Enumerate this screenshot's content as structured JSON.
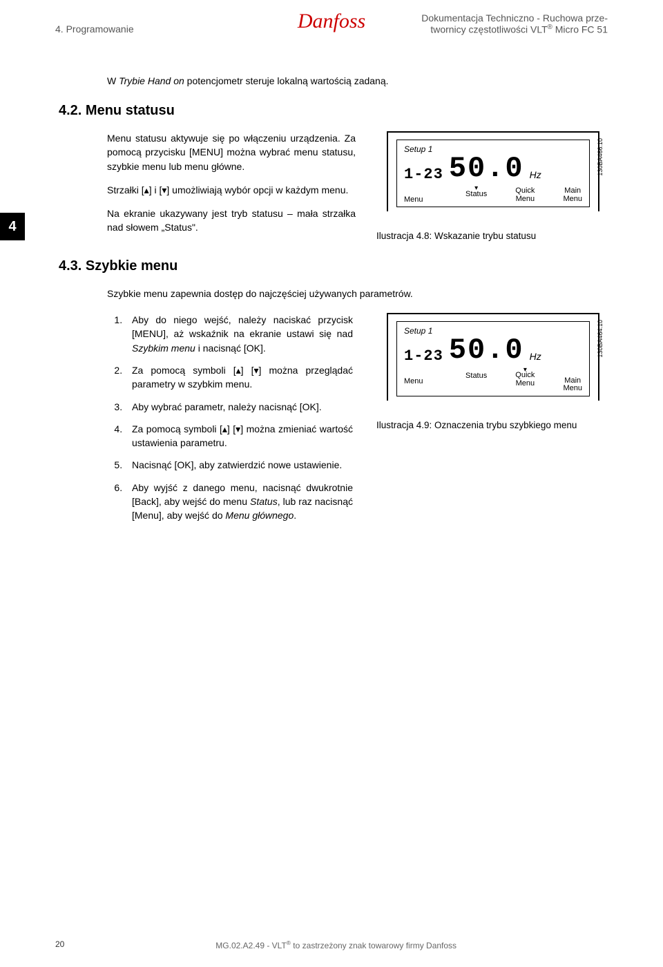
{
  "header": {
    "left": "4. Programowanie",
    "logo": "Danfoss",
    "right_line1": "Dokumentacja Techniczno - Ruchowa prze-",
    "right_line2": "twornicy częstotliwości VLT® Micro FC 51"
  },
  "section_tab": "4",
  "intro": {
    "pre": "W ",
    "italic": "Trybie Hand on",
    "post": " potencjometr steruje lokalną wartością zadaną."
  },
  "h42": "4.2. Menu statusu",
  "s42": {
    "p1": "Menu statusu aktywuje się po włączeniu urządzenia. Za pomocą przycisku [MENU] można wybrać menu statusu, szybkie menu lub menu główne.",
    "p2": "Strzałki [▴] i [▾] umożliwiają wybór opcji w każdym menu.",
    "p3": "Na ekranie ukazywany jest tryb statusu – mała strzałka nad słowem „Status\"."
  },
  "lcd": {
    "setup": "Setup 1",
    "small_digits": "1-23",
    "big_digits": "50.0",
    "hz": "Hz",
    "menu": "Menu",
    "status": "Status",
    "quick_l1": "Quick",
    "quick_l2": "Menu",
    "main_l1": "Main",
    "main_l2": "Menu",
    "side1": "130BA466.10",
    "side2": "130BA464.10"
  },
  "fig48": "Ilustracja 4.8: Wskazanie trybu statusu",
  "h43": "4.3. Szybkie menu",
  "s43_intro": "Szybkie menu zapewnia dostęp do najczęściej używanych parametrów.",
  "steps": {
    "s1a": "Aby do niego wejść, należy naciskać przycisk [MENU], aż wskaźnik na ekranie ustawi się nad ",
    "s1b": "Szybkim menu",
    "s1c": " i nacisnąć [OK].",
    "s2": "Za pomocą symboli [▴] [▾] można przeglądać parametry w szybkim menu.",
    "s3": "Aby wybrać parametr, należy nacisnąć [OK].",
    "s4": "Za pomocą symboli [▴] [▾] można zmieniać wartość ustawienia parametru.",
    "s5": "Nacisnąć [OK], aby zatwierdzić nowe ustawienie.",
    "s6a": "Aby wyjść z danego menu, nacisnąć dwukrotnie [Back], aby wejść do menu ",
    "s6b": "Status",
    "s6c": ", lub raz nacisnąć [Menu], aby wejść do ",
    "s6d": "Menu głównego",
    "s6e": "."
  },
  "fig49": "Ilustracja 4.9: Oznaczenia trybu szybkiego menu",
  "footer": {
    "page": "20",
    "center": "MG.02.A2.49 - VLT® to zastrzeżony znak towarowy firmy Danfoss"
  }
}
